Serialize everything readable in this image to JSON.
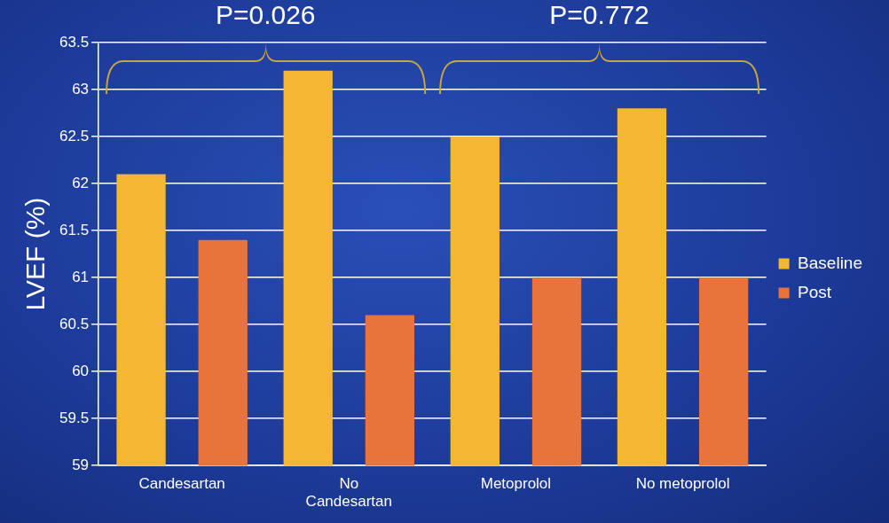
{
  "chart_data": {
    "type": "bar",
    "ylabel": "LVEF (%)",
    "categories": [
      "Candesartan",
      "No Candesartan",
      "Metoprolol",
      "No metoprolol"
    ],
    "series": [
      {
        "name": "Baseline",
        "color": "#f5b731",
        "values": [
          62.1,
          63.2,
          62.5,
          62.8
        ]
      },
      {
        "name": "Post",
        "color": "#e8743b",
        "values": [
          61.4,
          60.6,
          61.0,
          61.0
        ]
      }
    ],
    "ylim": [
      59,
      63.5
    ],
    "yticks": [
      59,
      59.5,
      60,
      60.5,
      61,
      61.5,
      62,
      62.5,
      63,
      63.5
    ],
    "grid": "y",
    "legend": "right",
    "annotations": [
      "P=0.026",
      "P=0.772"
    ]
  }
}
